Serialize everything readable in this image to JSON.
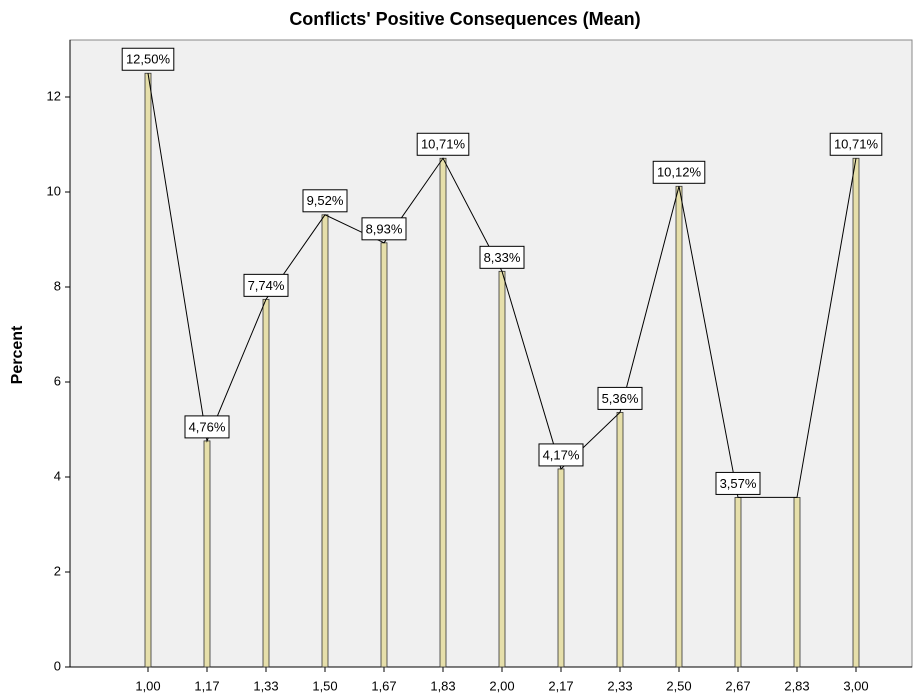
{
  "chart_data": {
    "type": "bar-line",
    "title": "Conflicts' Positive Consequences (Mean)",
    "y_label": "Percent",
    "categories": [
      "1,00",
      "1,17",
      "1,33",
      "1,50",
      "1,67",
      "1,83",
      "2,00",
      "2,17",
      "2,33",
      "2,50",
      "2,67",
      "2,83",
      "3,00"
    ],
    "values": [
      12.5,
      4.76,
      7.74,
      9.52,
      8.93,
      10.71,
      8.33,
      4.17,
      5.36,
      10.12,
      3.57,
      3.57,
      10.71
    ],
    "value_labels": [
      "12,50%",
      "4,76%",
      "7,74%",
      "9,52%",
      "8,93%",
      "10,71%",
      "8,33%",
      "4,17%",
      "5,36%",
      "10,12%",
      "3,57%",
      null,
      "10,71%"
    ],
    "color": "#e6dfaa",
    "line_color": "#000000",
    "ylim": [
      0,
      13.2
    ],
    "yticks": [
      0,
      2,
      4,
      6,
      8,
      10,
      12
    ]
  }
}
